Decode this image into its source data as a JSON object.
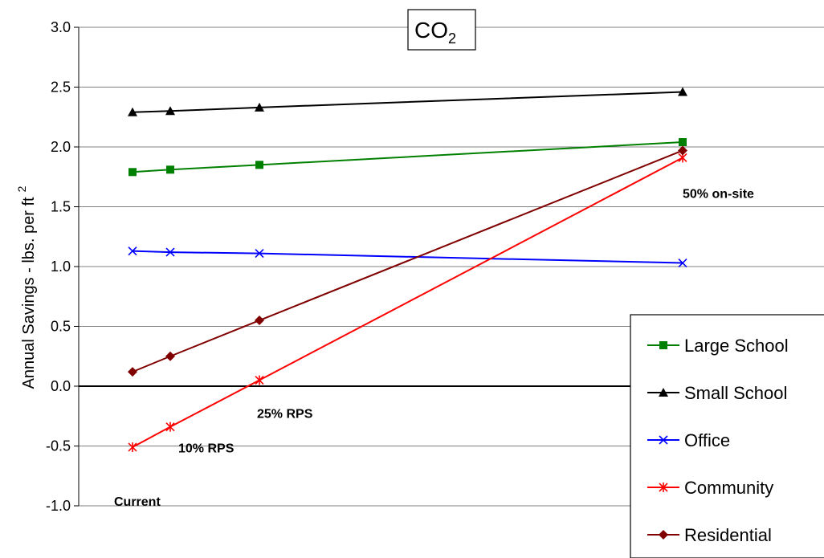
{
  "chart_data": {
    "type": "line",
    "title": "CO",
    "title_subscript": "2",
    "ylabel": "Annual Savings - lbs. per ft",
    "ylabel_superscript": "2",
    "xlabel": "",
    "ylim": [
      -1.0,
      3.0
    ],
    "y_ticks": [
      "3.0",
      "2.5",
      "2.0",
      "1.5",
      "1.0",
      "0.5",
      "0.0",
      "-0.5",
      "-1.0"
    ],
    "x_values": [
      0,
      10,
      25,
      50
    ],
    "grid": true,
    "legend_position": "right",
    "series": [
      {
        "name": "Large School",
        "color": "#008000",
        "marker": "square",
        "values": [
          1.79,
          1.81,
          1.85,
          2.04
        ]
      },
      {
        "name": "Small School",
        "color": "#000000",
        "marker": "triangle",
        "values": [
          2.29,
          2.3,
          2.33,
          2.46
        ]
      },
      {
        "name": "Office",
        "color": "#0000ff",
        "marker": "x",
        "values": [
          1.13,
          1.12,
          1.11,
          1.03
        ]
      },
      {
        "name": "Community",
        "color": "#ff0000",
        "marker": "star",
        "values": [
          -0.51,
          -0.34,
          0.05,
          1.91
        ]
      },
      {
        "name": "Residential",
        "color": "#800000",
        "marker": "diamond",
        "values": [
          0.12,
          0.25,
          0.55,
          1.97
        ]
      }
    ],
    "annotations": [
      {
        "text": "Current",
        "x_index": 0
      },
      {
        "text": "10% RPS",
        "x_index": 1
      },
      {
        "text": "25% RPS",
        "x_index": 2
      },
      {
        "text": "50% on-site",
        "x_index": 3
      }
    ]
  }
}
